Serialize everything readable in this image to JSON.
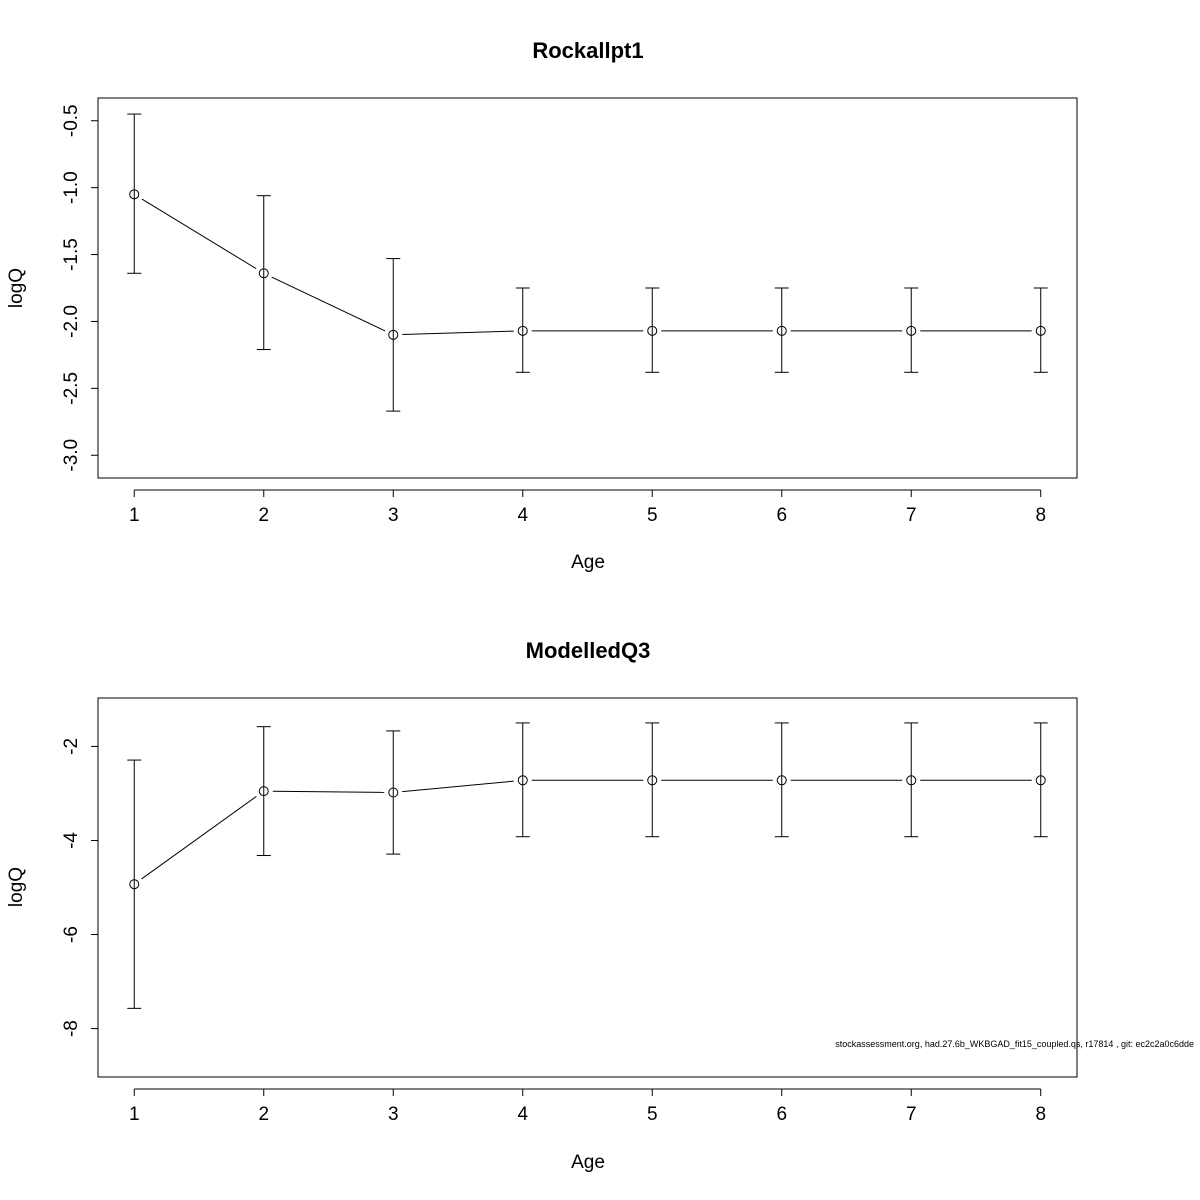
{
  "footnote": "stockassessment.org, had.27.6b_WKBGAD_fit15_coupled.qs, r17814 , git: ec2c2a0c6dde",
  "chart_data": [
    {
      "type": "line",
      "title": "Rockallpt1",
      "xlabel": "Age",
      "ylabel": "logQ",
      "x": [
        1,
        2,
        3,
        4,
        5,
        6,
        7,
        8
      ],
      "x_ticks": [
        "1",
        "2",
        "3",
        "4",
        "5",
        "6",
        "7",
        "8"
      ],
      "y_ticks": [
        -0.5,
        -1.0,
        -1.5,
        -2.0,
        -2.5,
        -3.0
      ],
      "y_tick_labels": [
        "-0.5",
        "-1.0",
        "-1.5",
        "-2.0",
        "-2.5",
        "-3.0"
      ],
      "ylim": [
        -3.17,
        -0.33
      ],
      "xlim": [
        0.72,
        8.28
      ],
      "series": [
        {
          "values": [
            -1.05,
            -1.64,
            -2.1,
            -2.07,
            -2.07,
            -2.07,
            -2.07,
            -2.07
          ],
          "lower": [
            -1.64,
            -2.21,
            -2.67,
            -2.38,
            -2.38,
            -2.38,
            -2.38,
            -2.38
          ],
          "upper": [
            -0.45,
            -1.06,
            -1.53,
            -1.75,
            -1.75,
            -1.75,
            -1.75,
            -1.75
          ]
        }
      ]
    },
    {
      "type": "line",
      "title": "ModelledQ3",
      "xlabel": "Age",
      "ylabel": "logQ",
      "x": [
        1,
        2,
        3,
        4,
        5,
        6,
        7,
        8
      ],
      "x_ticks": [
        "1",
        "2",
        "3",
        "4",
        "5",
        "6",
        "7",
        "8"
      ],
      "y_ticks": [
        -2,
        -4,
        -6,
        -8
      ],
      "y_tick_labels": [
        "-2",
        "-4",
        "-6",
        "-8"
      ],
      "ylim": [
        -9.03,
        -0.97
      ],
      "xlim": [
        0.72,
        8.28
      ],
      "series": [
        {
          "values": [
            -4.93,
            -2.95,
            -2.98,
            -2.72,
            -2.72,
            -2.72,
            -2.72,
            -2.72
          ],
          "lower": [
            -7.57,
            -4.32,
            -4.29,
            -3.92,
            -3.92,
            -3.92,
            -3.92,
            -3.92
          ],
          "upper": [
            -2.29,
            -1.58,
            -1.67,
            -1.5,
            -1.5,
            -1.5,
            -1.5,
            -1.5
          ]
        }
      ]
    }
  ]
}
